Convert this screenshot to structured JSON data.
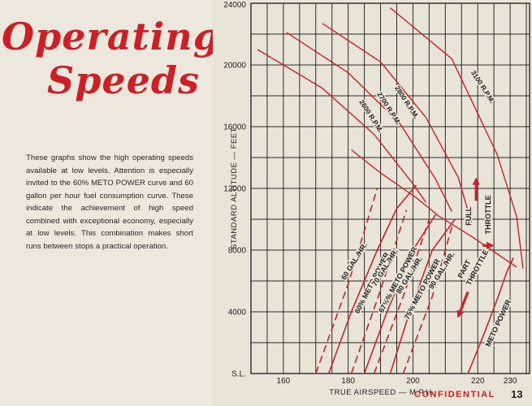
{
  "page": {
    "title_line1": "Operating",
    "title_line2": "Speeds",
    "description": "These graphs show the high operating speeds available at low levels. Attention is especially invited to the 60% METO POWER curve and 60 gallon per hour fuel consumption curve. These indicate the achievement of high speed combined with exceptional economy, especially at low levels. This combination makes short runs between stops a practical operation.",
    "footer_confidential": "CONFIDENTIAL",
    "page_number": "13"
  },
  "colors": {
    "red": "#cc1f26",
    "grid": "#2a2a2a",
    "text": "#222222"
  },
  "chart_data": {
    "type": "line",
    "title": "",
    "xlabel": "TRUE AIRSPEED — M.P.H.",
    "ylabel": "STANDARD ALTITUDE — FEET",
    "xlim": [
      150,
      236
    ],
    "ylim": [
      0,
      24000
    ],
    "grid": true,
    "x_ticks": [
      {
        "value": 160,
        "label": "160"
      },
      {
        "value": 180,
        "label": "180"
      },
      {
        "value": 200,
        "label": "200"
      },
      {
        "value": 220,
        "label": "220"
      },
      {
        "value": 230,
        "label": "230"
      }
    ],
    "y_ticks": [
      {
        "value": 0,
        "label": "S.L."
      },
      {
        "value": 4000,
        "label": "4000"
      },
      {
        "value": 8000,
        "label": "8000"
      },
      {
        "value": 12000,
        "label": "12000"
      },
      {
        "value": 16000,
        "label": "16000"
      },
      {
        "value": 20000,
        "label": "20000"
      },
      {
        "value": 24000,
        "label": "24000"
      }
    ],
    "rpm_curves": [
      {
        "name": "2600 R.P.M.",
        "points": [
          [
            152,
            21000
          ],
          [
            172,
            18500
          ],
          [
            188,
            15500
          ],
          [
            200,
            12300
          ],
          [
            204,
            11100
          ]
        ],
        "label_value": [
          186.5,
          16600
        ]
      },
      {
        "name": "2700 R.P.M.",
        "points": [
          [
            161,
            22100
          ],
          [
            180,
            19500
          ],
          [
            196,
            16200
          ],
          [
            207,
            12600
          ],
          [
            212,
            10500
          ]
        ],
        "label_value": [
          192,
          17100
        ]
      },
      {
        "name": "2800 R.P.M.",
        "points": [
          [
            172,
            22700
          ],
          [
            190,
            20200
          ],
          [
            204,
            16600
          ],
          [
            214,
            12700
          ],
          [
            218,
            9800
          ]
        ],
        "label_value": [
          197.5,
          17500
        ]
      },
      {
        "name": "3100 R.P.M.",
        "points": [
          [
            193,
            23700
          ],
          [
            212,
            20400
          ],
          [
            226,
            14200
          ],
          [
            232,
            10200
          ],
          [
            234,
            6800
          ]
        ],
        "label_value": [
          221,
          18500
        ]
      }
    ],
    "full_throttle_line": {
      "points": [
        [
          181,
          14500
        ],
        [
          190,
          13000
        ],
        [
          201,
          11400
        ],
        [
          208,
          10200
        ],
        [
          218,
          8900
        ],
        [
          232,
          6900
        ]
      ]
    },
    "power_lines": [
      {
        "name": "60% METO POWER",
        "solid": [
          [
            174,
            0
          ],
          [
            181,
            4000
          ],
          [
            189,
            8000
          ],
          [
            195,
            10700
          ],
          [
            201,
            12200
          ]
        ],
        "dashed": []
      },
      {
        "name": "67½% METO POWER",
        "solid": [
          [
            185,
            0
          ],
          [
            192,
            4000
          ],
          [
            200,
            8000
          ],
          [
            207,
            10300
          ]
        ],
        "dashed": []
      },
      {
        "name": "75% METO POWER",
        "solid": [
          [
            193,
            0
          ],
          [
            199,
            4000
          ],
          [
            206,
            8000
          ],
          [
            213,
            10000
          ]
        ],
        "dashed": []
      },
      {
        "name": "METO POWER",
        "solid": [
          [
            217,
            0
          ],
          [
            222,
            2600
          ],
          [
            226,
            4800
          ],
          [
            229,
            6600
          ],
          [
            231,
            7500
          ]
        ],
        "dashed": []
      }
    ],
    "fuel_lines": [
      {
        "name": "60 GAL./HR.",
        "dashed": [
          [
            170,
            0
          ],
          [
            180,
            5800
          ],
          [
            189,
            12000
          ]
        ]
      },
      {
        "name": "70 GAL./HR.",
        "dashed": [
          [
            181,
            0
          ],
          [
            190,
            5400
          ],
          [
            198,
            10600
          ]
        ]
      },
      {
        "name": "80 GAL./HR.",
        "dashed": [
          [
            188,
            0
          ],
          [
            197,
            5000
          ],
          [
            205,
            10000
          ]
        ]
      },
      {
        "name": "90 GAL./HR.",
        "dashed": [
          [
            197,
            0
          ],
          [
            206,
            5000
          ],
          [
            212,
            9500
          ]
        ]
      }
    ],
    "inline_labels": [
      {
        "text": "60 GAL./HR.",
        "x": 182.5,
        "y": 7200,
        "angle": -58
      },
      {
        "text": "60% METO POWER",
        "x": 188,
        "y": 5800,
        "angle": -63
      },
      {
        "text": "70 GAL./HR.",
        "x": 192,
        "y": 6800,
        "angle": -58
      },
      {
        "text": "67½% METO POWER",
        "x": 196,
        "y": 6000,
        "angle": -62
      },
      {
        "text": "80 GAL./HR.",
        "x": 199.5,
        "y": 6300,
        "angle": -58
      },
      {
        "text": "75% METO POWER",
        "x": 203.5,
        "y": 5400,
        "angle": -62
      },
      {
        "text": "90 GAL./HR.",
        "x": 209.5,
        "y": 6600,
        "angle": -58
      },
      {
        "text": "METO POWER",
        "x": 227,
        "y": 3200,
        "angle": -65
      },
      {
        "text": "FULL",
        "x": 218,
        "y": 10200,
        "angle": -90
      },
      {
        "text": "THROTTLE",
        "x": 224,
        "y": 10300,
        "angle": -90
      },
      {
        "text": "PART",
        "x": 216.5,
        "y": 6700,
        "angle": -62
      },
      {
        "text": "THROTTLE",
        "x": 220.5,
        "y": 6800,
        "angle": -62
      }
    ],
    "arrows": [
      {
        "name": "full-throttle-arrow",
        "from": [
          219.5,
          11200
        ],
        "to": [
          219.5,
          12600
        ]
      },
      {
        "name": "part-throttle-arrow-right",
        "from": [
          221.5,
          8300
        ],
        "to": [
          224.5,
          8300
        ]
      },
      {
        "name": "part-throttle-arrow-down",
        "from": [
          217,
          5300
        ],
        "to": [
          214,
          3700
        ]
      }
    ]
  }
}
